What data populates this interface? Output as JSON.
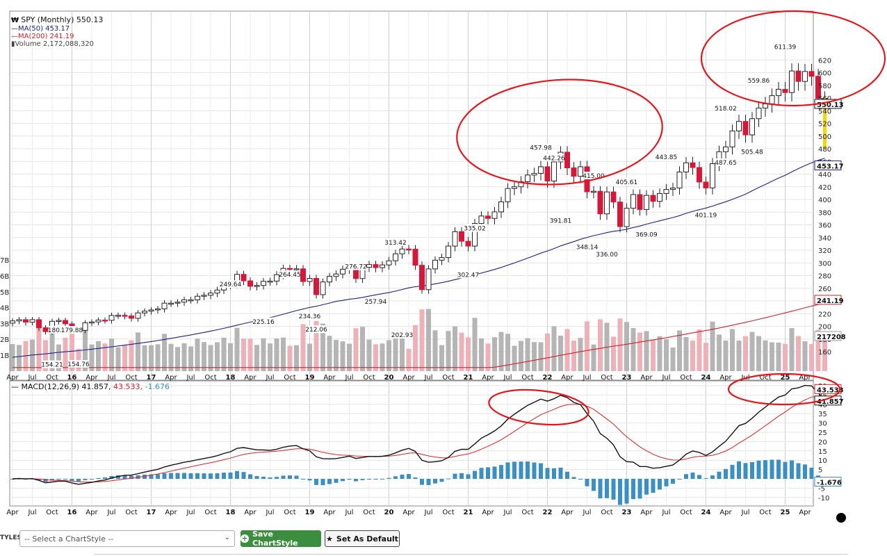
{
  "legend": {
    "symbol": "SPY (Monthly) 550.13",
    "ma50": "MA(50) 453.17",
    "ma200": "MA(200) 241.19",
    "volume": "Volume 2,172,088,320",
    "macd_name": "MACD(12,26,9) 41.857,",
    "macd_signal": "43.533,",
    "macd_hist": "-1.676"
  },
  "colors": {
    "up": "#ffffff",
    "down": "#d6173a",
    "ma50": "#1a237e",
    "ma200": "#d0202a",
    "vol_up": "#b5b5b5",
    "vol_down": "#eeb1b8",
    "hist": "#3a8fc4",
    "highlight": "#f5d800",
    "annot": "#e8141a"
  },
  "chart_data": [
    {
      "type": "candlestick",
      "title": "SPY (Monthly)",
      "x_range": [
        "2015-04",
        "2025-04"
      ],
      "ylim": [
        140,
        640
      ],
      "y_ticks": [
        160,
        180,
        200,
        220,
        240,
        260,
        280,
        300,
        320,
        340,
        360,
        380,
        400,
        420,
        440,
        460,
        480,
        500,
        520,
        540,
        560,
        580,
        600,
        620
      ],
      "x_tick_labels": [
        "Apr",
        "Jul",
        "Oct",
        "16",
        "Apr",
        "Jul",
        "Oct",
        "17",
        "Apr",
        "Jul",
        "Oct",
        "18",
        "Apr",
        "Jul",
        "Oct",
        "19",
        "Apr",
        "Jul",
        "Oct",
        "20",
        "Apr",
        "Jul",
        "Oct",
        "21",
        "Apr",
        "Jul",
        "Oct",
        "22",
        "Apr",
        "Jul",
        "Oct",
        "23",
        "Apr",
        "Jul",
        "Oct",
        "24",
        "Apr",
        "Jul",
        "Oct",
        "25",
        "Apr"
      ],
      "close": [
        208.5,
        210.5,
        206.5,
        210.5,
        197.7,
        191.6,
        207.9,
        209.3,
        203.9,
        193.7,
        193.6,
        205.5,
        206.9,
        209.8,
        209.5,
        217.1,
        217.4,
        216.3,
        212.6,
        221.1,
        223.9,
        225.8,
        227.5,
        236.5,
        236.5,
        238.1,
        241.8,
        241.8,
        247.4,
        249.0,
        252.4,
        257.2,
        265.1,
        266.9,
        281.9,
        271.7,
        263.1,
        264.5,
        270.9,
        271.3,
        281.3,
        291.3,
        290.7,
        290.7,
        270.6,
        275.6,
        249.9,
        269.9,
        278.7,
        282.5,
        290.0,
        294.0,
        275.3,
        293.0,
        297.4,
        292.5,
        296.8,
        303.3,
        314.3,
        321.9,
        321.7,
        296.3,
        257.8,
        290.5,
        304.3,
        308.4,
        326.5,
        349.3,
        334.1,
        326.5,
        362.1,
        373.9,
        370.1,
        380.4,
        396.3,
        417.3,
        420.0,
        428.1,
        438.5,
        441.2,
        451.6,
        429.1,
        459.3,
        474.5,
        449.8,
        436.6,
        451.6,
        412.0,
        412.9,
        377.3,
        411.9,
        396.0,
        357.2,
        386.2,
        407.7,
        384.2,
        406.5,
        397.0,
        409.4,
        415.9,
        418.0,
        443.3,
        457.8,
        450.4,
        427.5,
        418.2,
        456.4,
        475.3,
        482.9,
        508.1,
        523.1,
        501.9,
        527.4,
        544.2,
        550.8,
        563.7,
        573.8,
        568.6,
        602.6,
        586.1,
        601.8,
        594.2,
        559.4,
        550.1
      ],
      "highs": [
        180.24,
        179.88,
        249.64,
        264.45,
        276.72,
        313.42,
        335.02,
        457.98,
        442.26,
        415.0,
        405.61,
        443.85,
        518.02,
        559.86,
        611.39
      ],
      "lows": [
        154.21,
        154.76,
        225.16,
        234.36,
        212.06,
        257.94,
        202.93,
        302.47,
        391.81,
        348.14,
        336.0,
        369.09,
        401.19,
        487.65,
        505.48
      ],
      "ma50": {
        "name": "MA(50)",
        "last": 453.17
      },
      "ma200": {
        "name": "MA(200)",
        "last": 241.19
      },
      "volume": {
        "name": "Volume",
        "last": 2172088320,
        "axis_label": "217208",
        "axis_ticks": [
          "1B",
          "2B",
          "3B",
          "4B",
          "5B",
          "6B",
          "7B"
        ]
      },
      "current_price": 550.13
    },
    {
      "type": "line",
      "title": "MACD(12,26,9)",
      "ylim": [
        -15,
        55
      ],
      "y_ticks": [
        -10,
        -5,
        0,
        5,
        10,
        15,
        20,
        25,
        30,
        35,
        40,
        45,
        50
      ],
      "series": [
        {
          "name": "MACD",
          "last": 41.857
        },
        {
          "name": "Signal",
          "last": 43.533
        },
        {
          "name": "Histogram",
          "last": -1.676
        }
      ],
      "axis_labels": [
        "41.857",
        "43.533",
        "-1.676"
      ]
    }
  ],
  "toolbar": {
    "styles_label": "TYLES",
    "select_placeholder": "-- Select a ChartStyle --",
    "save_label": "Save ChartStyle",
    "default_label": "Set As Default"
  }
}
